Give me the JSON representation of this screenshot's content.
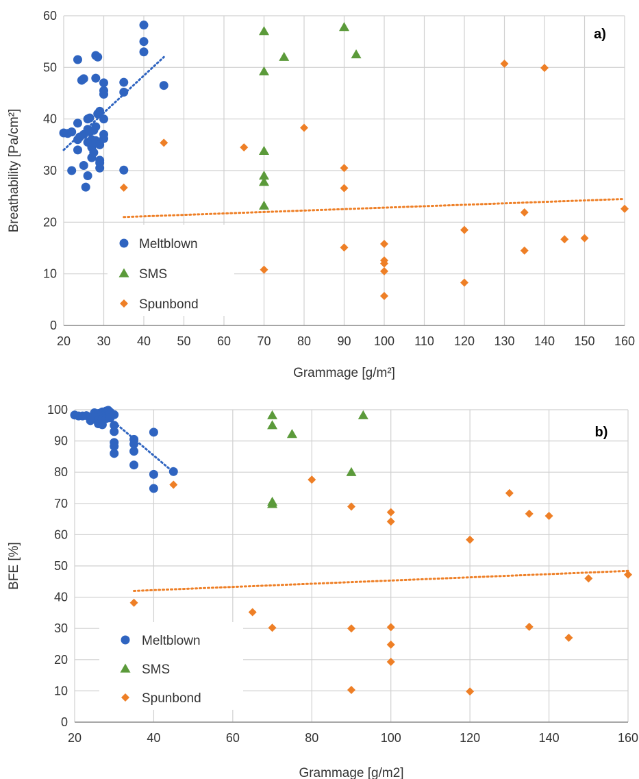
{
  "colors": {
    "Meltblown": "#2f64c0",
    "SMS": "#5b9a3a",
    "Spunbond": "#ee7f26",
    "grid": "#d0d0d0",
    "axis": "#8c8c8c"
  },
  "chart_data": [
    {
      "type": "scatter",
      "panel_label": "a)",
      "xlabel": "Grammage [g/m²]",
      "ylabel": "Breathability [Pa/cm²]",
      "xlim": [
        20,
        160
      ],
      "ylim": [
        0,
        60
      ],
      "x_ticks": [
        20,
        30,
        40,
        50,
        60,
        70,
        80,
        90,
        100,
        110,
        120,
        130,
        140,
        150,
        160
      ],
      "y_ticks": [
        0,
        10,
        20,
        30,
        40,
        50,
        60
      ],
      "grid": true,
      "legend_position": "bottom-left",
      "series": [
        {
          "name": "Meltblown",
          "marker": "circle",
          "points": [
            [
              20,
              37.3
            ],
            [
              21,
              37.2
            ],
            [
              22,
              37.5
            ],
            [
              22,
              30
            ],
            [
              23.5,
              51.5
            ],
            [
              23.5,
              39.2
            ],
            [
              23.5,
              36
            ],
            [
              23.5,
              34
            ],
            [
              24,
              36.5
            ],
            [
              24.5,
              47.5
            ],
            [
              25,
              47.8
            ],
            [
              25,
              37
            ],
            [
              25,
              31
            ],
            [
              25.5,
              26.8
            ],
            [
              26,
              40
            ],
            [
              26,
              38
            ],
            [
              26,
              35.5
            ],
            [
              26,
              29
            ],
            [
              26.5,
              40.2
            ],
            [
              26.5,
              37.5
            ],
            [
              27,
              36
            ],
            [
              27,
              34.5
            ],
            [
              27,
              32.5
            ],
            [
              27.5,
              37.8
            ],
            [
              27.5,
              33.5
            ],
            [
              28,
              52.3
            ],
            [
              28,
              47.9
            ],
            [
              28,
              38.5
            ],
            [
              28,
              35.8
            ],
            [
              28.5,
              52
            ],
            [
              28.5,
              41
            ],
            [
              29,
              41.5
            ],
            [
              29,
              35
            ],
            [
              29,
              32
            ],
            [
              29,
              31.5
            ],
            [
              29,
              30.5
            ],
            [
              30,
              47
            ],
            [
              30,
              45.5
            ],
            [
              30,
              44.8
            ],
            [
              30,
              40
            ],
            [
              30,
              37
            ],
            [
              30,
              36.2
            ],
            [
              35,
              47.1
            ],
            [
              35,
              45.2
            ],
            [
              35,
              30.1
            ],
            [
              40,
              58.2
            ],
            [
              40,
              55
            ],
            [
              40,
              53
            ],
            [
              45,
              46.5
            ]
          ],
          "trend": [
            [
              20,
              34
            ],
            [
              45,
              52
            ]
          ]
        },
        {
          "name": "SMS",
          "marker": "triangle",
          "points": [
            [
              70,
              57
            ],
            [
              70,
              49.2
            ],
            [
              70,
              33.8
            ],
            [
              70,
              29
            ],
            [
              70,
              27.8
            ],
            [
              70,
              23.2
            ],
            [
              75,
              52
            ],
            [
              90,
              57.8
            ],
            [
              93,
              52.5
            ]
          ]
        },
        {
          "name": "Spunbond",
          "marker": "diamond",
          "points": [
            [
              35,
              26.7
            ],
            [
              45,
              35.4
            ],
            [
              65,
              34.5
            ],
            [
              70,
              10.8
            ],
            [
              80,
              38.3
            ],
            [
              90,
              30.5
            ],
            [
              90,
              26.6
            ],
            [
              90,
              15.1
            ],
            [
              100,
              15.8
            ],
            [
              100,
              12.6
            ],
            [
              100,
              12
            ],
            [
              100,
              10.5
            ],
            [
              100,
              5.7
            ],
            [
              120,
              18.5
            ],
            [
              120,
              8.3
            ],
            [
              130,
              50.7
            ],
            [
              135,
              21.9
            ],
            [
              135,
              14.5
            ],
            [
              140,
              49.9
            ],
            [
              145,
              16.7
            ],
            [
              150,
              16.9
            ],
            [
              160,
              22.6
            ]
          ],
          "trend": [
            [
              35,
              21
            ],
            [
              160,
              24.5
            ]
          ]
        }
      ]
    },
    {
      "type": "scatter",
      "panel_label": "b)",
      "xlabel": "Grammage [g/m2]",
      "ylabel": "BFE [%]",
      "xlim": [
        20,
        160
      ],
      "ylim": [
        0,
        100
      ],
      "x_ticks": [
        20,
        40,
        60,
        80,
        100,
        120,
        140,
        160
      ],
      "y_ticks": [
        0,
        10,
        20,
        30,
        40,
        50,
        60,
        70,
        80,
        90,
        100
      ],
      "grid": true,
      "legend_position": "bottom-left",
      "series": [
        {
          "name": "Meltblown",
          "marker": "circle",
          "points": [
            [
              20,
              98.3
            ],
            [
              21,
              98
            ],
            [
              22,
              98
            ],
            [
              23,
              98.1
            ],
            [
              24,
              97
            ],
            [
              24,
              96.5
            ],
            [
              25,
              99
            ],
            [
              25,
              98.2
            ],
            [
              25,
              97.5
            ],
            [
              26,
              98.8
            ],
            [
              26,
              96.8
            ],
            [
              26,
              95.5
            ],
            [
              27,
              99.3
            ],
            [
              27,
              98.6
            ],
            [
              27,
              97
            ],
            [
              27,
              95.2
            ],
            [
              28,
              99.6
            ],
            [
              28,
              98.9
            ],
            [
              28,
              98
            ],
            [
              28,
              97.2
            ],
            [
              28.5,
              99.8
            ],
            [
              29,
              99.2
            ],
            [
              29,
              98.6
            ],
            [
              29,
              97.4
            ],
            [
              30,
              98.4
            ],
            [
              30,
              95
            ],
            [
              30,
              93
            ],
            [
              30,
              89.5
            ],
            [
              30,
              88.3
            ],
            [
              30,
              86
            ],
            [
              35,
              90.5
            ],
            [
              35,
              89
            ],
            [
              35,
              86.7
            ],
            [
              35,
              82.3
            ],
            [
              40,
              92.8
            ],
            [
              40,
              79.3
            ],
            [
              40,
              74.8
            ],
            [
              45,
              80.2
            ]
          ],
          "trend": [
            [
              30,
              96
            ],
            [
              45,
              80
            ]
          ]
        },
        {
          "name": "SMS",
          "marker": "triangle",
          "points": [
            [
              70,
              98.2
            ],
            [
              70,
              95
            ],
            [
              70,
              70.5
            ],
            [
              70,
              69.8
            ],
            [
              75,
              92.2
            ],
            [
              90,
              80
            ],
            [
              93,
              98.2
            ]
          ]
        },
        {
          "name": "Spunbond",
          "marker": "diamond",
          "points": [
            [
              35,
              38.2
            ],
            [
              45,
              76
            ],
            [
              65,
              35.2
            ],
            [
              70,
              30.2
            ],
            [
              80,
              77.6
            ],
            [
              90,
              69
            ],
            [
              90,
              30
            ],
            [
              90,
              10.3
            ],
            [
              100,
              67.2
            ],
            [
              100,
              64.2
            ],
            [
              100,
              30.4
            ],
            [
              100,
              24.8
            ],
            [
              100,
              19.3
            ],
            [
              120,
              58.4
            ],
            [
              120,
              9.8
            ],
            [
              130,
              73.3
            ],
            [
              135,
              66.7
            ],
            [
              135,
              30.5
            ],
            [
              140,
              66
            ],
            [
              145,
              27
            ],
            [
              150,
              46
            ],
            [
              160,
              47.2
            ]
          ],
          "trend": [
            [
              35,
              42
            ],
            [
              160,
              48.4
            ]
          ]
        }
      ]
    }
  ]
}
